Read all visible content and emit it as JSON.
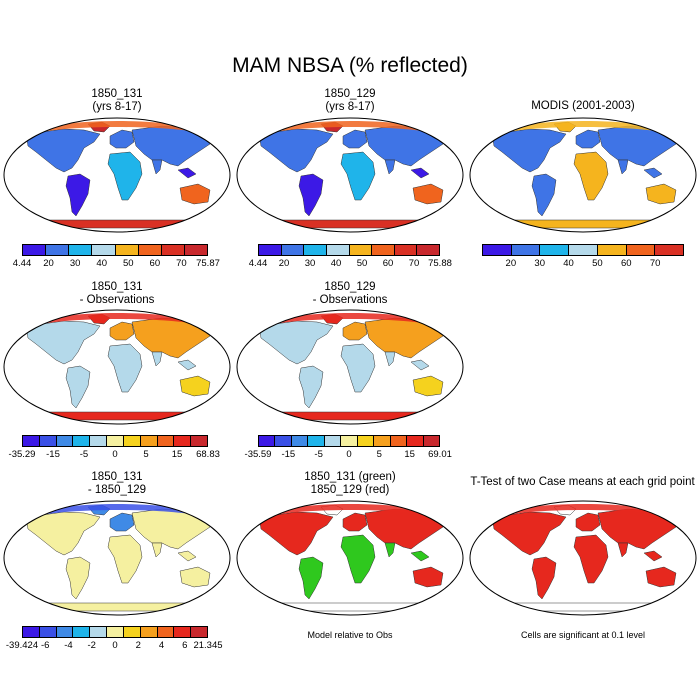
{
  "title": "MAM NBSA (% reflected)",
  "panels": [
    {
      "id": "p1",
      "title1": "1850_131",
      "title2": "(yrs 8-17)",
      "palette": "abs"
    },
    {
      "id": "p2",
      "title1": "1850_129",
      "title2": "(yrs 8-17)",
      "palette": "abs"
    },
    {
      "id": "p3",
      "title1": "MODIS (2001-2003)",
      "title2": "",
      "palette": "modis"
    },
    {
      "id": "p4",
      "title1": "1850_131",
      "title2": "- Observations",
      "palette": "diff"
    },
    {
      "id": "p5",
      "title1": "1850_129",
      "title2": "- Observations",
      "palette": "diff2"
    },
    {
      "id": "p6",
      "title1": "1850_131",
      "title2": "- 1850_129",
      "palette": "case"
    },
    {
      "id": "p7",
      "title1": "1850_131 (green)",
      "title2": "1850_129 (red)",
      "palette": "gr"
    },
    {
      "id": "p8",
      "title1": "T-Test of two Case means at each grid point",
      "title2": "",
      "palette": "red"
    }
  ],
  "colorbars": [
    {
      "id": "cb1",
      "colors": [
        "#3c19e6",
        "#3f74e6",
        "#1fb4ea",
        "#b4d9ea",
        "#f5b41e",
        "#f0641e",
        "#d93024",
        "#c8282d"
      ],
      "labels": [
        "4.44",
        "20",
        "30",
        "40",
        "50",
        "60",
        "70",
        "75.87"
      ]
    },
    {
      "id": "cb2",
      "colors": [
        "#3c19e6",
        "#3f74e6",
        "#1fb4ea",
        "#b4d9ea",
        "#f5b41e",
        "#f0641e",
        "#d93024",
        "#c8282d"
      ],
      "labels": [
        "4.44",
        "20",
        "30",
        "40",
        "50",
        "60",
        "70",
        "75.88"
      ]
    },
    {
      "id": "cb3",
      "colors": [
        "#3c19e6",
        "#3f74e6",
        "#1fb4ea",
        "#b4d9ea",
        "#f5b41e",
        "#f0641e",
        "#d93024"
      ],
      "labels": [
        "",
        "20",
        "30",
        "40",
        "50",
        "60",
        "70",
        ""
      ]
    },
    {
      "id": "cb4",
      "colors": [
        "#3c19e6",
        "#3a50e6",
        "#3f8ae6",
        "#1fb4ea",
        "#b4d9ea",
        "#f5f0a0",
        "#f5d21e",
        "#f5a01e",
        "#f0641e",
        "#e6281e",
        "#c8282d"
      ],
      "labels": [
        "-35.29",
        "-15",
        "-5",
        "0",
        "5",
        "15",
        "68.83"
      ]
    },
    {
      "id": "cb5",
      "colors": [
        "#3c19e6",
        "#3a50e6",
        "#3f8ae6",
        "#1fb4ea",
        "#b4d9ea",
        "#f5f0a0",
        "#f5d21e",
        "#f5a01e",
        "#f0641e",
        "#e6281e",
        "#c8282d"
      ],
      "labels": [
        "-35.59",
        "-15",
        "-5",
        "0",
        "5",
        "15",
        "69.01"
      ]
    },
    {
      "id": "cb6",
      "colors": [
        "#3c19e6",
        "#3a50e6",
        "#3f8ae6",
        "#1fb4ea",
        "#b4d9ea",
        "#f5f0a0",
        "#f5d21e",
        "#f5a01e",
        "#f0641e",
        "#e6281e",
        "#c8282d"
      ],
      "labels": [
        "-39.424",
        "-6",
        "-4",
        "-2",
        "0",
        "2",
        "4",
        "6",
        "21.345"
      ]
    }
  ],
  "notes": {
    "model_relative": "Model relative to Obs",
    "cells_significant": "Cells are significant at 0.1 level"
  }
}
